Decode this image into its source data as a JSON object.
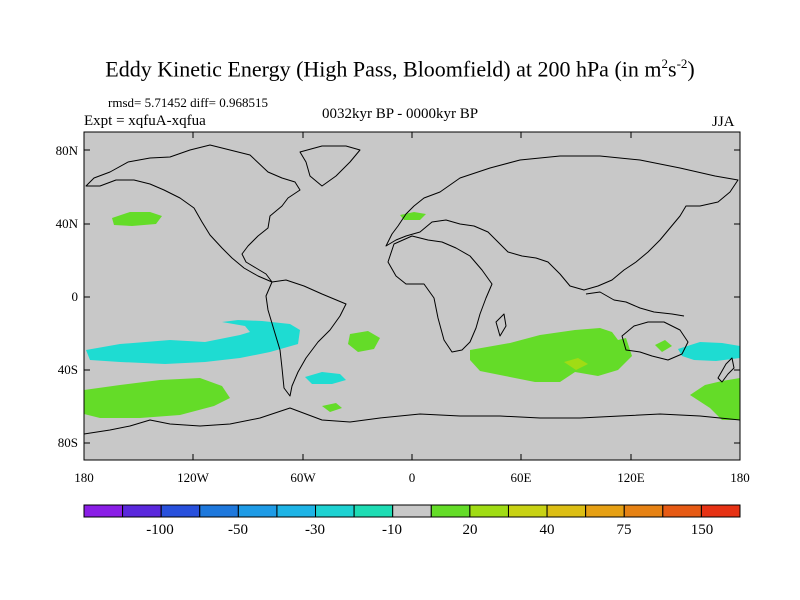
{
  "title": {
    "main": "Eddy Kinetic Energy (High Pass, Bloomfield) at 200 hPa (in m",
    "sup1": "2",
    "mid": "s",
    "sup2": "-2",
    "end": ")"
  },
  "stats": "rmsd= 5.71452 diff= 0.968515",
  "expt": "Expt = xqfuA-xqfua",
  "period": "0032kyr BP - 0000kyr BP",
  "season": "JJA",
  "lat_labels": [
    "80N",
    "40N",
    "0",
    "40S",
    "80S"
  ],
  "lon_labels": [
    "180",
    "120W",
    "60W",
    "0",
    "60E",
    "120E",
    "180"
  ],
  "colorbar": {
    "colors": [
      "#8a1ee6",
      "#5a28dc",
      "#2850dc",
      "#1e78dc",
      "#1e9be6",
      "#1eb4e6",
      "#1ed2d2",
      "#1edcb4",
      "#c8c8c8",
      "#64dc28",
      "#a0dc14",
      "#c8d214",
      "#dcbe14",
      "#e6a014",
      "#e68214",
      "#e65a14",
      "#e63214"
    ],
    "labels": [
      "-100",
      "-50",
      "-30",
      "-10",
      "20",
      "40",
      "75",
      "150"
    ]
  },
  "colors": {
    "land_bg": "#c8c8c8",
    "cyan": "#1edcd2",
    "green": "#64dc28",
    "yellowgreen": "#a0dc14"
  }
}
